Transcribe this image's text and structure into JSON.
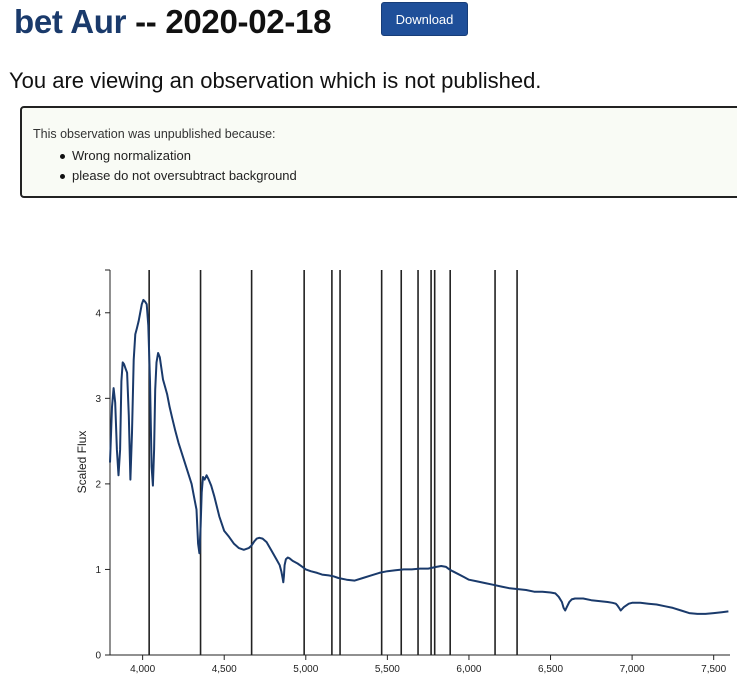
{
  "header": {
    "star_name": "bet Aur",
    "separator": "--",
    "date": "2020-02-18",
    "download_label": "Download"
  },
  "notice": "You are viewing an observation which is not published.",
  "reason": {
    "intro": "This observation was unpublished because:",
    "items": [
      "Wrong normalization",
      "please do not oversubtract background"
    ]
  },
  "chart_data": {
    "type": "line",
    "ylabel": "Scaled Flux",
    "xlabel": "",
    "xlim": [
      3800,
      7600
    ],
    "ylim": [
      0,
      4.5
    ],
    "x_ticks": [
      4000,
      4500,
      5000,
      5500,
      6000,
      6500,
      7000,
      7500
    ],
    "x_tick_labels": [
      "4,000",
      "4,500",
      "5,000",
      "5,500",
      "6,000",
      "6,500",
      "7,000",
      "7,500"
    ],
    "y_ticks": [
      0,
      1,
      2,
      3,
      4
    ],
    "y_tick_labels": [
      "0",
      "1",
      "2",
      "3",
      "4"
    ],
    "color": "#1a3a6b",
    "line_color": "#222222",
    "vertical_lines": [
      4040,
      4355,
      4668,
      4990,
      5160,
      5210,
      5465,
      5585,
      5688,
      5768,
      5790,
      5885,
      6160,
      6295
    ],
    "series": [
      {
        "x": [
          3800,
          3812,
          3822,
          3832,
          3842,
          3852,
          3862,
          3870,
          3878,
          3886,
          3895,
          3905,
          3915,
          3925,
          3935,
          3945,
          3955,
          3965,
          3975,
          3985,
          3995,
          4005,
          4015,
          4025,
          4035,
          4045,
          4055,
          4063,
          4070,
          4077,
          4085,
          4095,
          4105,
          4115,
          4125,
          4135,
          4150,
          4165,
          4180,
          4200,
          4220,
          4250,
          4280,
          4300,
          4315,
          4330,
          4340,
          4348,
          4355,
          4362,
          4370,
          4380,
          4392,
          4405,
          4420,
          4440,
          4470,
          4500,
          4530,
          4560,
          4590,
          4620,
          4650,
          4668,
          4685,
          4700,
          4715,
          4735,
          4760,
          4790,
          4820,
          4840,
          4850,
          4858,
          4862,
          4866,
          4870,
          4878,
          4890,
          4900,
          4920,
          4950,
          4980,
          5000,
          5030,
          5070,
          5100,
          5140,
          5170,
          5200,
          5250,
          5300,
          5350,
          5400,
          5450,
          5500,
          5550,
          5600,
          5650,
          5700,
          5750,
          5800,
          5830,
          5860,
          5880,
          5900,
          5930,
          5970,
          6000,
          6050,
          6100,
          6150,
          6200,
          6250,
          6300,
          6350,
          6400,
          6450,
          6500,
          6530,
          6550,
          6570,
          6580,
          6590,
          6600,
          6615,
          6630,
          6650,
          6700,
          6750,
          6800,
          6850,
          6880,
          6900,
          6910,
          6920,
          6930,
          6950,
          6980,
          7000,
          7050,
          7100,
          7150,
          7200,
          7250,
          7300,
          7350,
          7400,
          7450,
          7500,
          7550,
          7590
        ],
        "y": [
          2.25,
          2.9,
          3.12,
          2.95,
          2.4,
          2.1,
          2.4,
          3.2,
          3.42,
          3.4,
          3.35,
          3.3,
          2.8,
          2.05,
          2.6,
          3.45,
          3.75,
          3.82,
          3.9,
          4.0,
          4.1,
          4.15,
          4.13,
          4.1,
          3.85,
          3.2,
          2.2,
          1.98,
          2.4,
          3.1,
          3.42,
          3.53,
          3.48,
          3.35,
          3.22,
          3.15,
          3.05,
          2.9,
          2.78,
          2.62,
          2.48,
          2.3,
          2.12,
          2.0,
          1.85,
          1.7,
          1.3,
          1.19,
          1.5,
          1.9,
          2.08,
          2.05,
          2.1,
          2.05,
          1.98,
          1.85,
          1.62,
          1.45,
          1.38,
          1.3,
          1.25,
          1.23,
          1.25,
          1.28,
          1.33,
          1.36,
          1.37,
          1.36,
          1.32,
          1.22,
          1.12,
          1.05,
          0.98,
          0.9,
          0.85,
          0.92,
          1.05,
          1.12,
          1.14,
          1.13,
          1.1,
          1.07,
          1.03,
          1.0,
          0.98,
          0.96,
          0.94,
          0.93,
          0.92,
          0.9,
          0.88,
          0.87,
          0.9,
          0.93,
          0.96,
          0.98,
          0.99,
          1.0,
          1.0,
          1.01,
          1.01,
          1.03,
          1.04,
          1.03,
          1.0,
          0.98,
          0.95,
          0.91,
          0.88,
          0.86,
          0.84,
          0.82,
          0.8,
          0.78,
          0.77,
          0.76,
          0.74,
          0.74,
          0.73,
          0.72,
          0.68,
          0.62,
          0.55,
          0.52,
          0.56,
          0.62,
          0.65,
          0.66,
          0.66,
          0.64,
          0.63,
          0.62,
          0.61,
          0.6,
          0.58,
          0.55,
          0.52,
          0.56,
          0.6,
          0.61,
          0.61,
          0.6,
          0.59,
          0.57,
          0.55,
          0.52,
          0.49,
          0.48,
          0.48,
          0.49,
          0.5,
          0.51
        ]
      }
    ]
  }
}
